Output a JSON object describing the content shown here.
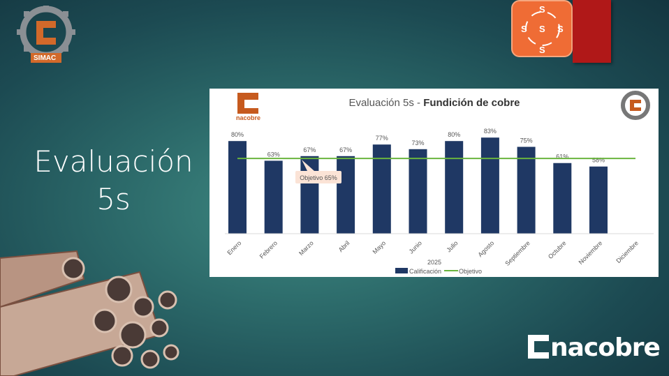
{
  "slide": {
    "title_line1": "Evaluación",
    "title_line2": "5s"
  },
  "logos": {
    "simac": "SIMAC",
    "nacobre": "nacobre",
    "fives_letters": [
      "S",
      "S",
      "S",
      "S",
      "S"
    ]
  },
  "colors": {
    "bar": "#1f3864",
    "objective": "#6ab43e",
    "accent": "#c65a1e",
    "callout": "#fbe3d6"
  },
  "chart_data": {
    "type": "bar",
    "title": "Evaluación 5s - ",
    "title_bold": "Fundición de cobre",
    "xlabel": "2025",
    "categories": [
      "Enero",
      "Febrero",
      "Marzo",
      "Abril",
      "Mayo",
      "Junio",
      "Julio",
      "Agosto",
      "Septiembre",
      "Octubre",
      "Noviembre",
      "Diciembre"
    ],
    "series": [
      {
        "name": "Calificación",
        "values": [
          80,
          63,
          67,
          67,
          77,
          73,
          80,
          83,
          75,
          61,
          58,
          null
        ]
      },
      {
        "name": "Objetivo",
        "type": "line",
        "value": 65
      }
    ],
    "data_labels": [
      "80%",
      "63%",
      "67%",
      "67%",
      "77%",
      "73%",
      "80%",
      "83%",
      "75%",
      "61%",
      "58%",
      ""
    ],
    "annotation": "Objetivo 65%",
    "ylim": [
      0,
      100
    ],
    "grid": false,
    "legend": "bottom"
  }
}
